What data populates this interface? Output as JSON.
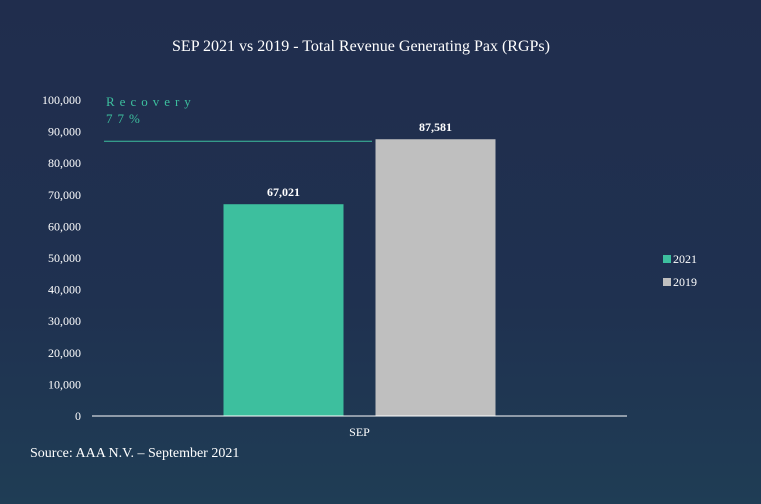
{
  "chart_data": {
    "type": "bar",
    "title": "SEP 2021 vs 2019 - Total Revenue Generating Pax (RGPs)",
    "categories": [
      "SEP"
    ],
    "series": [
      {
        "name": "2021",
        "values": [
          67021
        ],
        "labels": [
          "67,021"
        ],
        "color": "#3dbf9e"
      },
      {
        "name": "2019",
        "values": [
          87581
        ],
        "labels": [
          "87,581"
        ],
        "color": "#bfbfbf"
      }
    ],
    "ylim": [
      0,
      100000
    ],
    "yticks": [
      0,
      10000,
      20000,
      30000,
      40000,
      50000,
      60000,
      70000,
      80000,
      90000,
      100000
    ],
    "ytick_labels": [
      "0",
      "10,000",
      "20,000",
      "30,000",
      "40,000",
      "50,000",
      "60,000",
      "70,000",
      "80,000",
      "90,000",
      "100,000"
    ],
    "xlabel": "",
    "ylabel": "",
    "grid": false,
    "legend": "right",
    "annotation": {
      "line1": "Recovery",
      "line2": "77%",
      "line_value": 87581,
      "color": "#3dbf9e"
    }
  },
  "source": "Source: AAA N.V. – September 2021"
}
